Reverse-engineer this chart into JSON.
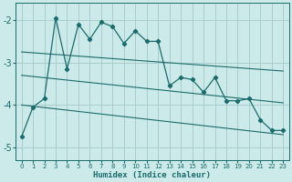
{
  "xlabel": "Humidex (Indice chaleur)",
  "background_color": "#cdeaea",
  "grid_color": "#a8cccc",
  "line_color": "#1a6b6b",
  "xlim": [
    -0.5,
    23.5
  ],
  "ylim": [
    -5.3,
    -1.6
  ],
  "yticks": [
    -5,
    -4,
    -3,
    -2
  ],
  "xticks": [
    0,
    1,
    2,
    3,
    4,
    5,
    6,
    7,
    8,
    9,
    10,
    11,
    12,
    13,
    14,
    15,
    16,
    17,
    18,
    19,
    20,
    21,
    22,
    23
  ],
  "main_x": [
    0,
    1,
    2,
    3,
    4,
    5,
    6,
    7,
    8,
    9,
    10,
    11,
    12,
    13,
    14,
    15,
    16,
    17,
    18,
    19,
    20,
    21,
    22,
    23
  ],
  "main_y": [
    -4.75,
    -4.05,
    -3.85,
    -1.95,
    -3.15,
    -2.1,
    -2.45,
    -2.05,
    -2.15,
    -2.55,
    -2.25,
    -2.5,
    -2.5,
    -3.55,
    -3.35,
    -3.4,
    -3.7,
    -3.35,
    -3.9,
    -3.9,
    -3.85,
    -4.35,
    -4.6,
    -4.6
  ],
  "reg_line1_x": [
    0,
    23
  ],
  "reg_line1_y": [
    -2.75,
    -3.2
  ],
  "reg_line2_x": [
    0,
    23
  ],
  "reg_line2_y": [
    -3.3,
    -3.95
  ],
  "reg_line3_x": [
    0,
    23
  ],
  "reg_line3_y": [
    -4.0,
    -4.7
  ]
}
